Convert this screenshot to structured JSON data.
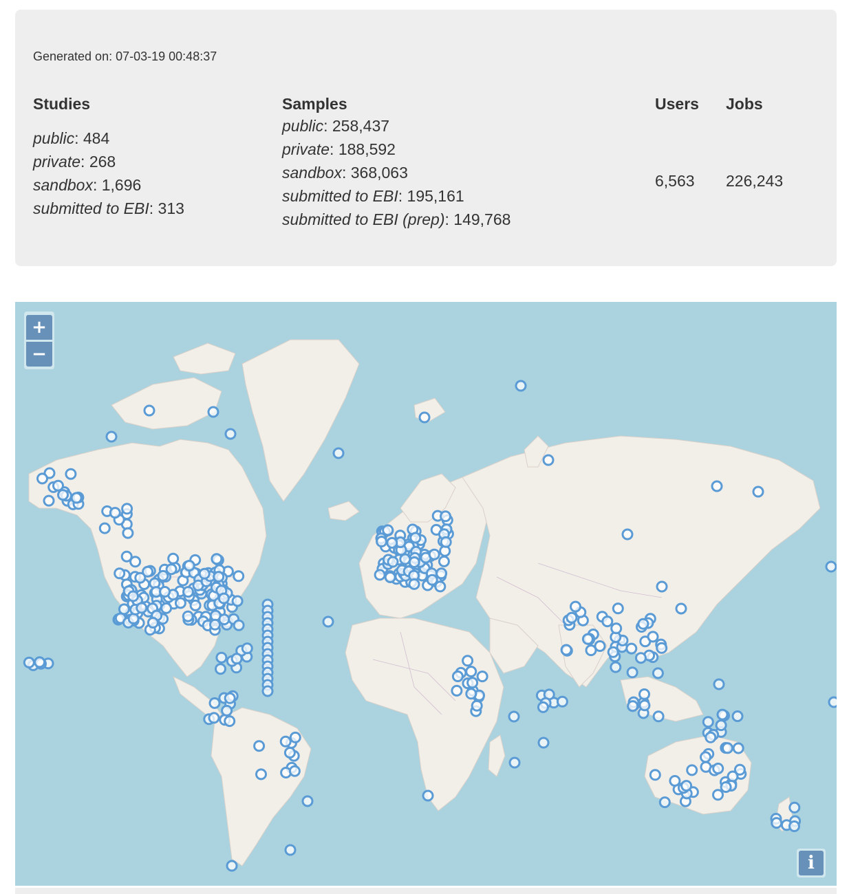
{
  "generated": {
    "label": "Generated on:",
    "value": "07-03-19 00:48:37"
  },
  "studies": {
    "title": "Studies",
    "items": [
      {
        "label": "public",
        "value": ": 484"
      },
      {
        "label": "private",
        "value": ": 268"
      },
      {
        "label": "sandbox",
        "value": ": 1,696"
      },
      {
        "label": "submitted to EBI",
        "value": ": 313"
      }
    ]
  },
  "samples": {
    "title": "Samples",
    "items": [
      {
        "label": "public",
        "value": ": 258,437"
      },
      {
        "label": "private",
        "value": ": 188,592"
      },
      {
        "label": "sandbox",
        "value": ": 368,063"
      },
      {
        "label": "submitted to EBI",
        "value": ": 195,161"
      },
      {
        "label": "submitted to EBI (prep)",
        "value": ": 149,768"
      }
    ]
  },
  "users": {
    "title": "Users",
    "value": "6,563"
  },
  "jobs": {
    "title": "Jobs",
    "value": "226,243"
  },
  "map": {
    "zoom_in_label": "+",
    "zoom_out_label": "−",
    "info_label": "i",
    "colors": {
      "water": "#aad3df",
      "land": "#f2efe9",
      "marker": "#5b9bd5",
      "border": "#c8b2c8"
    }
  }
}
